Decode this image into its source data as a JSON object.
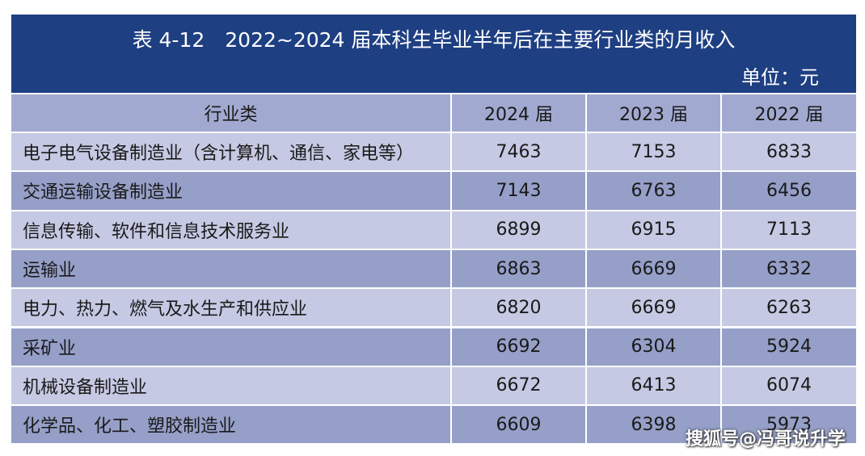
{
  "header": {
    "title": "表 4-12　2022~2024 届本科生毕业半年后在主要行业类的月收入",
    "unit": "单位：元"
  },
  "table": {
    "columns": [
      "行业类",
      "2024 届",
      "2023 届",
      "2022 届"
    ],
    "rows": [
      [
        "电子电气设备制造业（含计算机、通信、家电等）",
        7463,
        7153,
        6833
      ],
      [
        "交通运输设备制造业",
        7143,
        6763,
        6456
      ],
      [
        "信息传输、软件和信息技术服务业",
        6899,
        6915,
        7113
      ],
      [
        "运输业",
        6863,
        6669,
        6332
      ],
      [
        "电力、热力、燃气及水生产和供应业",
        6820,
        6669,
        6263
      ],
      [
        "采矿业",
        6692,
        6304,
        5924
      ],
      [
        "机械设备制造业",
        6672,
        6413,
        6074
      ],
      [
        "化学品、化工、塑胶制造业",
        6609,
        6398,
        5973
      ]
    ]
  },
  "watermark": "搜狐号@冯哥说升学"
}
